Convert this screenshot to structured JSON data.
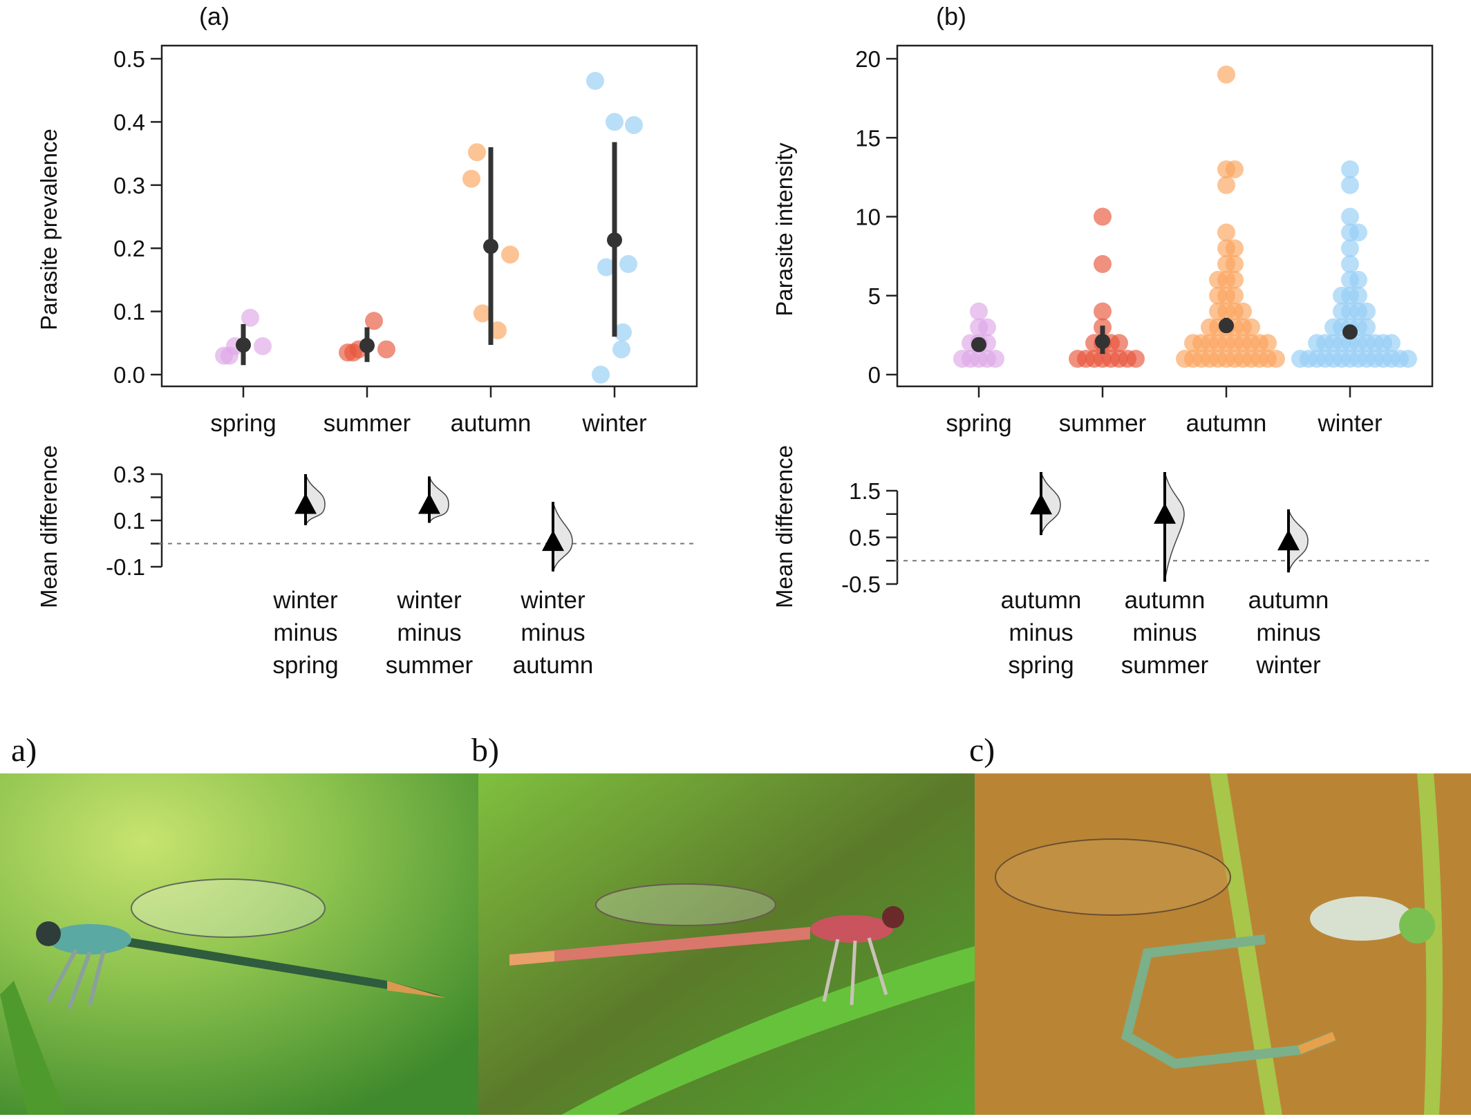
{
  "chart_data": [
    {
      "panel": "(a)",
      "type": "scatter",
      "ylabel": "Parasite prevalence",
      "categories": [
        "spring",
        "summer",
        "autumn",
        "winter"
      ],
      "ylim": [
        0,
        0.5
      ],
      "yticks": [
        "0.0",
        "0.1",
        "0.2",
        "0.3",
        "0.4",
        "0.5"
      ],
      "colors": [
        "#dda6e6",
        "#e8553a",
        "#fba35a",
        "#93cdf5"
      ],
      "points": [
        [
          0.03,
          0.045,
          0.09,
          0.045,
          0.03
        ],
        [
          0.035,
          0.04,
          0.085,
          0.04,
          0.035
        ],
        [
          0.31,
          0.097,
          0.07,
          0.19,
          0.352
        ],
        [
          0.465,
          0.17,
          0.04,
          0.395,
          0.0,
          0.175,
          0.4,
          0.067
        ]
      ],
      "means": [
        0.047,
        0.046,
        0.203,
        0.213
      ],
      "ci": [
        [
          0.015,
          0.08
        ],
        [
          0.02,
          0.075
        ],
        [
          0.047,
          0.36
        ],
        [
          0.06,
          0.368
        ]
      ],
      "diff": {
        "ylabel": "Mean difference",
        "yticks": [
          "0.3",
          "0.1",
          "-0.1"
        ],
        "ylim": [
          -0.1,
          0.3
        ],
        "labels": [
          [
            "winter",
            "minus",
            "spring"
          ],
          [
            "winter",
            "minus",
            "summer"
          ],
          [
            "winter",
            "minus",
            "autumn"
          ]
        ],
        "means": [
          0.17,
          0.17,
          0.01
        ],
        "ci": [
          [
            0.08,
            0.3
          ],
          [
            0.09,
            0.29
          ],
          [
            -0.12,
            0.18
          ]
        ]
      }
    },
    {
      "panel": "(b)",
      "type": "scatter",
      "ylabel": "Parasite intensity",
      "categories": [
        "spring",
        "summer",
        "autumn",
        "winter"
      ],
      "ylim": [
        0,
        20
      ],
      "yticks": [
        "0",
        "5",
        "10",
        "15",
        "20"
      ],
      "colors": [
        "#dda6e6",
        "#e8553a",
        "#fba35a",
        "#93cdf5"
      ],
      "points": [
        [
          4,
          3,
          3,
          2,
          2,
          2,
          1,
          1,
          1,
          1,
          1
        ],
        [
          10,
          7,
          4,
          3,
          2,
          2,
          2,
          2,
          1,
          1,
          1,
          1,
          1,
          1,
          1,
          1
        ],
        [
          19,
          13,
          13,
          12,
          9,
          8,
          8,
          7,
          7,
          6,
          6,
          6,
          5,
          5,
          5,
          4,
          4,
          4,
          4,
          3,
          3,
          3,
          3,
          3,
          3,
          2,
          2,
          2,
          2,
          2,
          2,
          2,
          2,
          2,
          2,
          1,
          1,
          1,
          1,
          1,
          1,
          1,
          1,
          1,
          1,
          1,
          1
        ],
        [
          13,
          12,
          10,
          9,
          9,
          8,
          7,
          6,
          6,
          5,
          5,
          5,
          4,
          4,
          4,
          4,
          3,
          3,
          3,
          3,
          3,
          2,
          2,
          2,
          2,
          2,
          2,
          2,
          2,
          2,
          2,
          1,
          1,
          1,
          1,
          1,
          1,
          1,
          1,
          1,
          1,
          1,
          1,
          1,
          1
        ]
      ],
      "means": [
        1.9,
        2.1,
        3.1,
        2.7
      ],
      "ci": [
        [
          1.55,
          2.35
        ],
        [
          1.3,
          3.1
        ],
        [
          2.7,
          3.6
        ],
        [
          2.4,
          3.0
        ]
      ],
      "diff": {
        "ylabel": "Mean difference",
        "yticks": [
          "1.5",
          "0.5",
          "-0.5"
        ],
        "ylim": [
          -0.5,
          1.5
        ],
        "labels": [
          [
            "autumn",
            "minus",
            "spring"
          ],
          [
            "autumn",
            "minus",
            "summer"
          ],
          [
            "autumn",
            "minus",
            "winter"
          ]
        ],
        "means": [
          1.2,
          1.0,
          0.43
        ],
        "ci": [
          [
            0.55,
            1.9
          ],
          [
            -0.45,
            1.9
          ],
          [
            -0.25,
            1.1
          ]
        ]
      }
    }
  ],
  "photo_labels": [
    "a)",
    "b)",
    "c)"
  ],
  "photo_colors": {
    "a": [
      "#c8e36f",
      "#8cc24e",
      "#3f8a2c",
      "#2e5c3c",
      "#5aa9a2",
      "#d89a4e"
    ],
    "b": [
      "#7fc03f",
      "#4ea52f",
      "#5b5a2a",
      "#d9776a",
      "#c9545e",
      "#e9a06a"
    ],
    "c": [
      "#b98535",
      "#c6974b",
      "#a7c64a",
      "#7bb08a",
      "#e8a14a"
    ]
  }
}
